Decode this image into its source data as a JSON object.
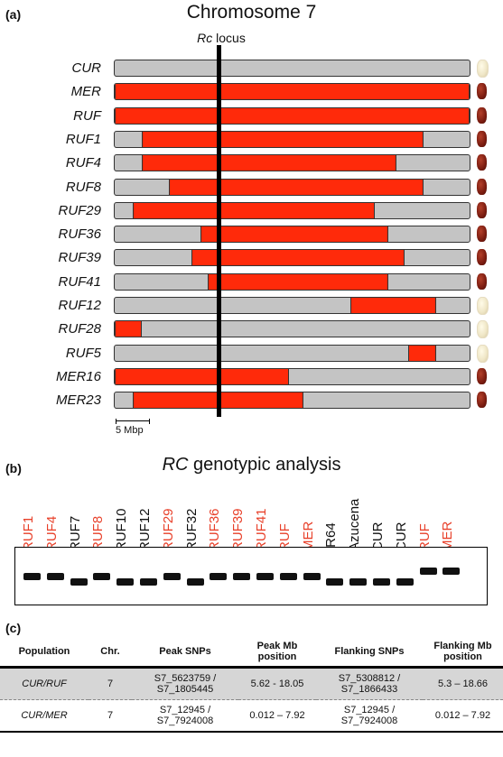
{
  "panel_a": {
    "label": "(a)",
    "title": "Chromosome 7",
    "locus_prefix": "Rc",
    "locus_suffix": " locus",
    "scale_label": "5 Mbp",
    "lines": [
      {
        "name": "CUR",
        "segments": [],
        "grain": "white"
      },
      {
        "name": "MER",
        "segments": [
          [
            0,
            100
          ]
        ],
        "grain": "red"
      },
      {
        "name": "RUF",
        "segments": [
          [
            0,
            100
          ]
        ],
        "grain": "red"
      },
      {
        "name": "RUF1",
        "segments": [
          [
            7.6,
            87
          ]
        ],
        "grain": "red"
      },
      {
        "name": "RUF4",
        "segments": [
          [
            7.6,
            79.4
          ]
        ],
        "grain": "red"
      },
      {
        "name": "RUF8",
        "segments": [
          [
            15.2,
            87
          ]
        ],
        "grain": "red"
      },
      {
        "name": "RUF29",
        "segments": [
          [
            5.1,
            73.3
          ]
        ],
        "grain": "red"
      },
      {
        "name": "RUF36",
        "segments": [
          [
            24.2,
            77.1
          ]
        ],
        "grain": "red"
      },
      {
        "name": "RUF39",
        "segments": [
          [
            21.6,
            81.7
          ]
        ],
        "grain": "red"
      },
      {
        "name": "RUF41",
        "segments": [
          [
            26.2,
            77.1
          ]
        ],
        "grain": "red"
      },
      {
        "name": "RUF12",
        "segments": [
          [
            66.4,
            90.6
          ]
        ],
        "grain": "white"
      },
      {
        "name": "RUF28",
        "segments": [
          [
            0,
            7.6
          ]
        ],
        "grain": "white"
      },
      {
        "name": "RUF5",
        "segments": [
          [
            82.7,
            90.6
          ]
        ],
        "grain": "white"
      },
      {
        "name": "MER16",
        "segments": [
          [
            0,
            49.1
          ]
        ],
        "grain": "red"
      },
      {
        "name": "MER23",
        "segments": [
          [
            5.1,
            53.2
          ]
        ],
        "grain": "red"
      }
    ],
    "locus_position_pct": 29.8
  },
  "panel_b": {
    "label": "(b)",
    "title_prefix": "RC",
    "title_suffix": " genotypic analysis",
    "colors": {
      "red": "#e8402a",
      "black": "#111111"
    },
    "lanes": [
      {
        "name": "RUF1",
        "color": "red",
        "band_offset": 0
      },
      {
        "name": "RUF4",
        "color": "red",
        "band_offset": 0
      },
      {
        "name": "RUF7",
        "color": "black",
        "band_offset": 1
      },
      {
        "name": "RUF8",
        "color": "red",
        "band_offset": 0
      },
      {
        "name": "RUF10",
        "color": "black",
        "band_offset": 1
      },
      {
        "name": "RUF12",
        "color": "black",
        "band_offset": 1
      },
      {
        "name": "RUF29",
        "color": "red",
        "band_offset": 0
      },
      {
        "name": "RUF32",
        "color": "black",
        "band_offset": 1
      },
      {
        "name": "RUF36",
        "color": "red",
        "band_offset": 0
      },
      {
        "name": "RUF39",
        "color": "red",
        "band_offset": 0
      },
      {
        "name": "RUF41",
        "color": "red",
        "band_offset": 0
      },
      {
        "name": "RUF",
        "color": "red",
        "band_offset": 0
      },
      {
        "name": "MER",
        "color": "red",
        "band_offset": 0
      },
      {
        "name": "IR64",
        "color": "black",
        "band_offset": 1
      },
      {
        "name": "Azucena",
        "color": "black",
        "band_offset": 1
      },
      {
        "name": "CUR",
        "color": "black",
        "band_offset": 1
      },
      {
        "name": "CUR",
        "color": "black",
        "band_offset": 1
      },
      {
        "name": "RUF",
        "color": "red",
        "band_offset": -1
      },
      {
        "name": "MER",
        "color": "red",
        "band_offset": -1
      }
    ]
  },
  "panel_c": {
    "label": "(c)",
    "headers": [
      "Population",
      "Chr.",
      "Peak SNPs",
      "Peak Mb position",
      "Flanking SNPs",
      "Flanking Mb position"
    ],
    "rows": [
      {
        "population": "CUR/RUF",
        "chr": "7",
        "peak_snps_1": "S7_5623759 /",
        "peak_snps_2": "S7_1805445",
        "peak_mb": "5.62 - 18.05",
        "flank_snps_1": "S7_5308812 /",
        "flank_snps_2": "S7_1866433",
        "flank_mb": "5.3 – 18.66"
      },
      {
        "population": "CUR/MER",
        "chr": "7",
        "peak_snps_1": "S7_12945 /",
        "peak_snps_2": "S7_7924008",
        "peak_mb": "0.012 – 7.92",
        "flank_snps_1": "S7_12945 /",
        "flank_snps_2": "S7_7924008",
        "flank_mb": "0.012 – 7.92"
      }
    ]
  }
}
